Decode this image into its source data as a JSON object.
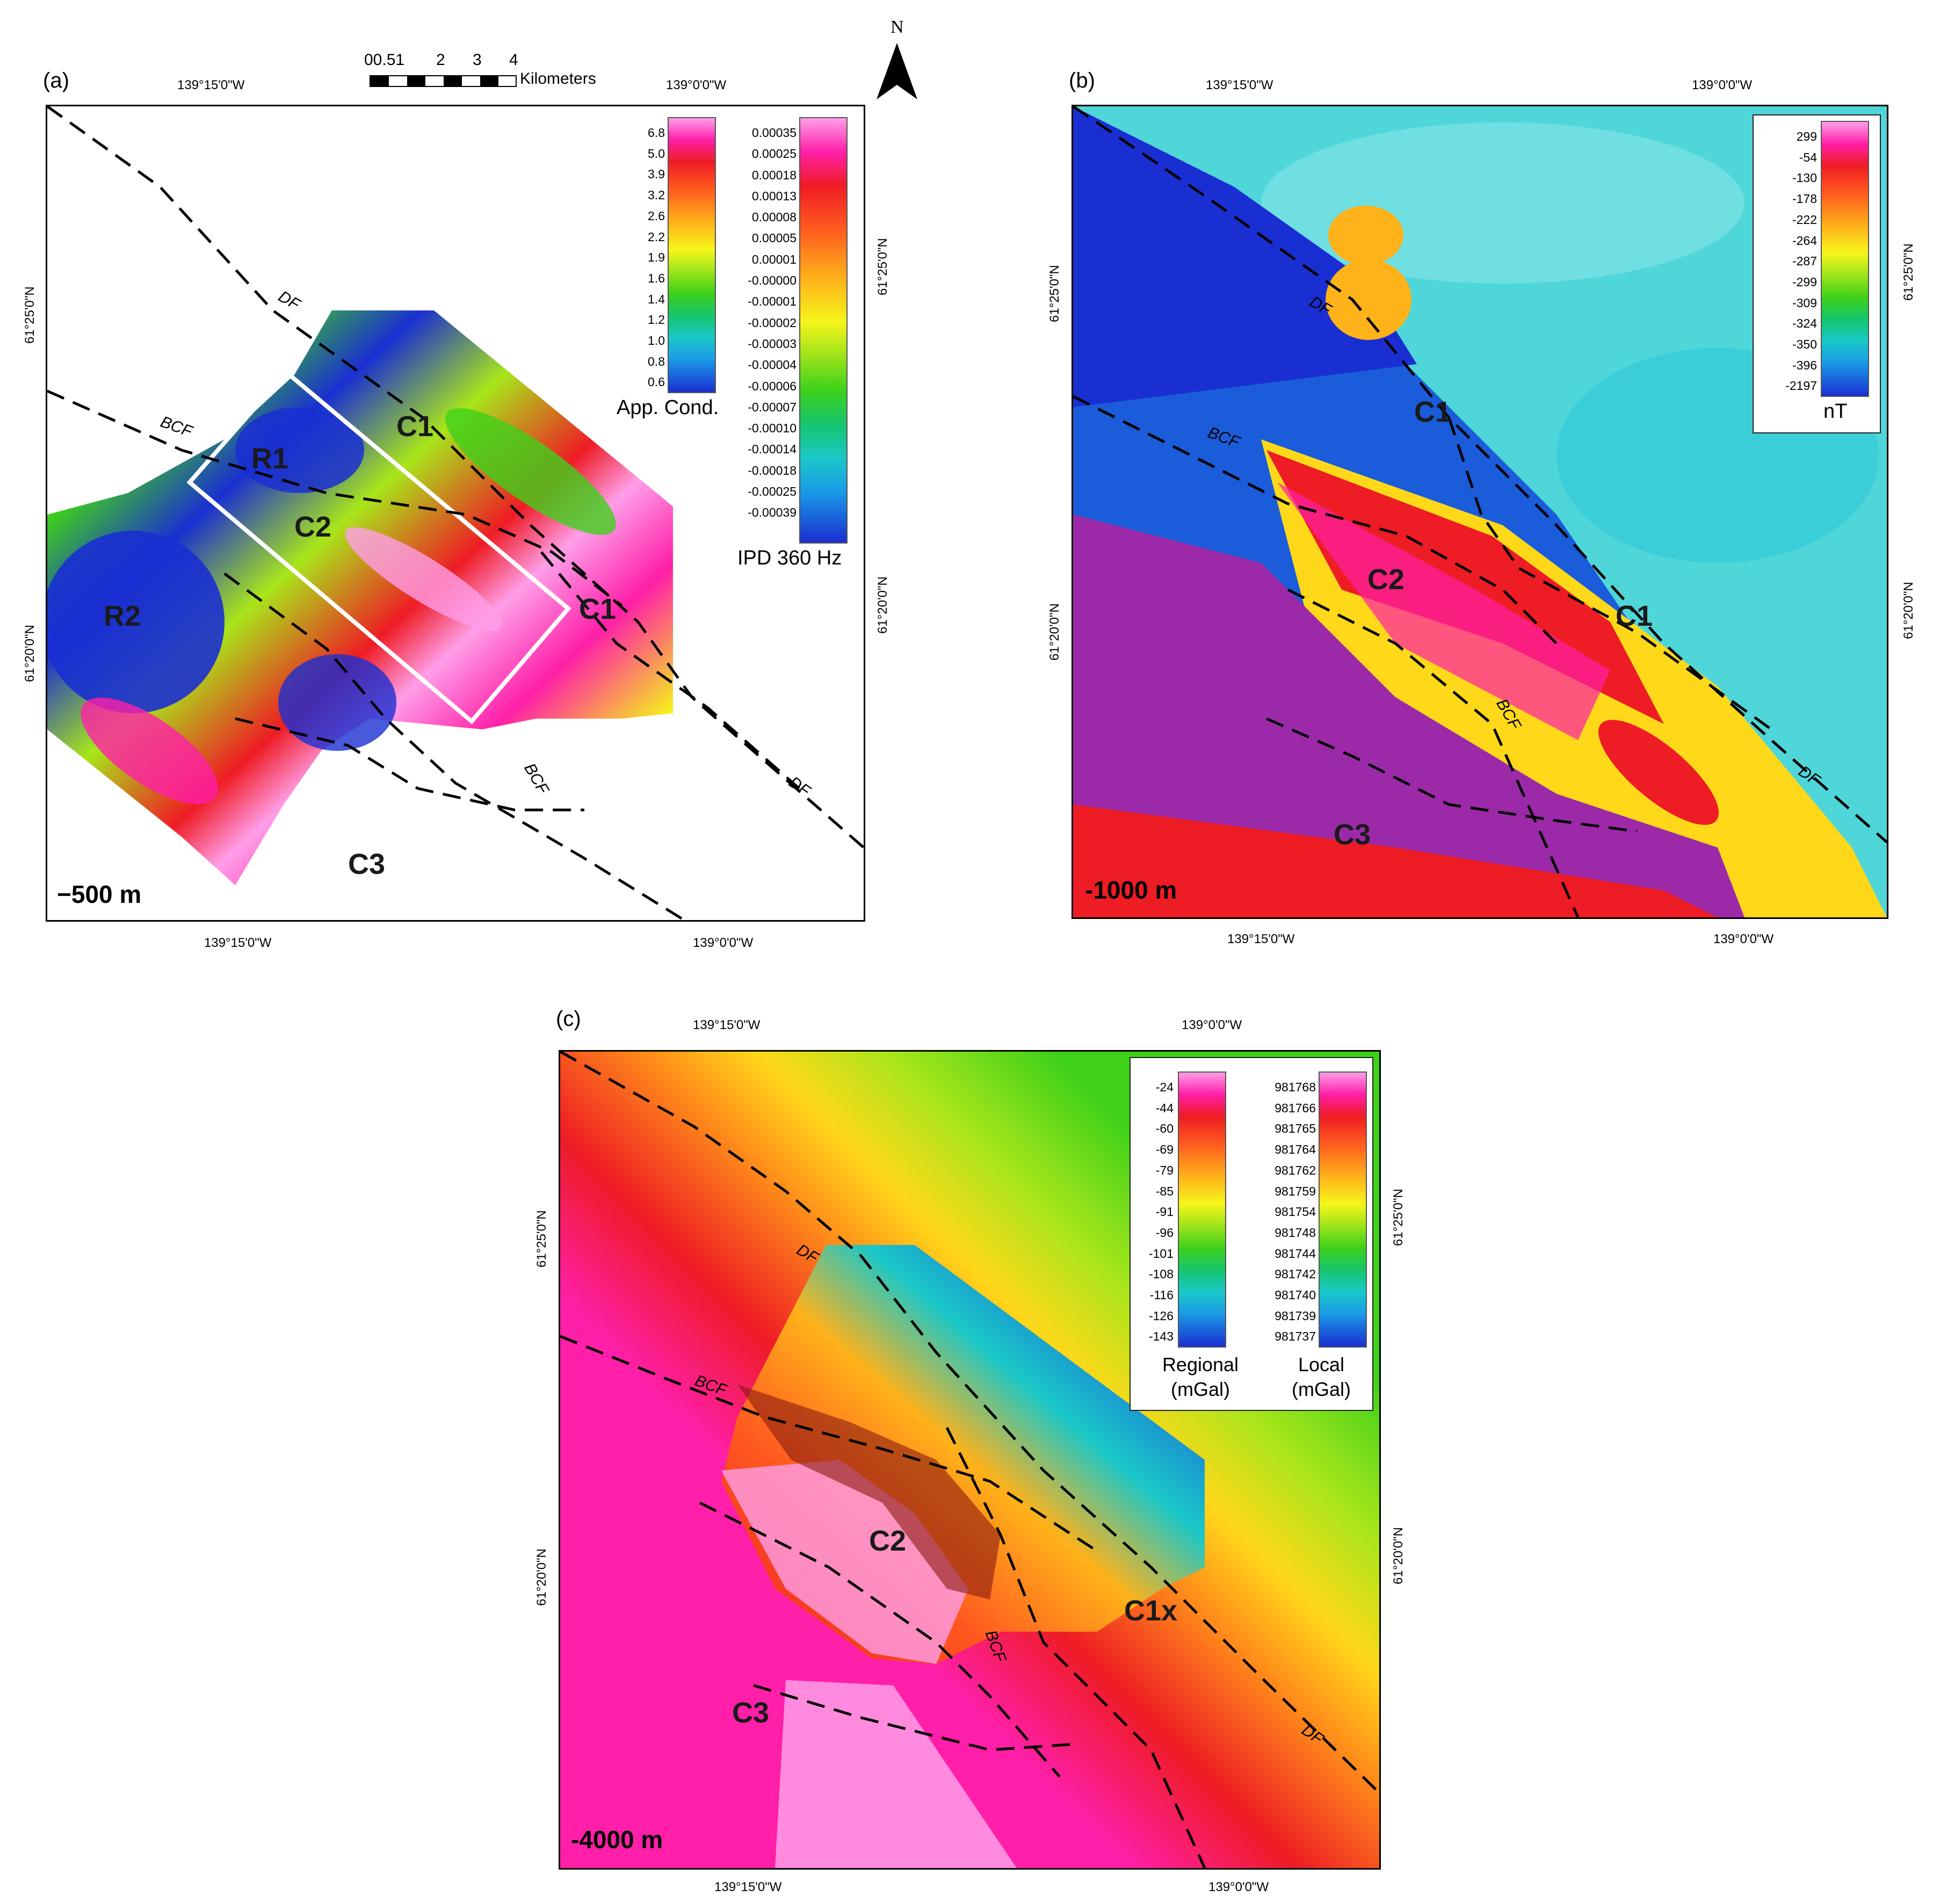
{
  "panels": {
    "a": {
      "letter": "(a)",
      "depth": "−500 m",
      "lon_labels": [
        "139°15'0\"W",
        "139°0'0\"W"
      ],
      "lat_labels": [
        "61°25'0\"N",
        "61°20'0\"N"
      ],
      "feature_labels": [
        "C1",
        "C1",
        "R1",
        "C2",
        "R2",
        "C3"
      ],
      "fault_labels": [
        "DF",
        "BCF",
        "BCF",
        "DF"
      ],
      "legend_left": {
        "title": "App. Cond.",
        "values": [
          "6.8",
          "5.0",
          "3.9",
          "3.2",
          "2.6",
          "2.2",
          "1.9",
          "1.6",
          "1.4",
          "1.2",
          "1.0",
          "0.8",
          "0.6"
        ]
      },
      "legend_right": {
        "title": "IPD 360 Hz",
        "values": [
          "0.00035",
          "0.00025",
          "0.00018",
          "0.00013",
          "0.00008",
          "0.00005",
          "0.00001",
          "-0.00000",
          "-0.00001",
          "-0.00002",
          "-0.00003",
          "-0.00004",
          "-0.00006",
          "-0.00007",
          "-0.00010",
          "-0.00014",
          "-0.00018",
          "-0.00025",
          "-0.00039"
        ]
      }
    },
    "b": {
      "letter": "(b)",
      "depth": "-1000 m",
      "lon_labels": [
        "139°15'0\"W",
        "139°0'0\"W"
      ],
      "lat_labels": [
        "61°25'0\"N",
        "61°20'0\"N"
      ],
      "feature_labels": [
        "C1",
        "C1",
        "C2",
        "C3"
      ],
      "fault_labels": [
        "DF",
        "BCF",
        "BCF",
        "DF"
      ],
      "legend": {
        "title": "nT",
        "values": [
          "299",
          "-54",
          "-130",
          "-178",
          "-222",
          "-264",
          "-287",
          "-299",
          "-309",
          "-324",
          "-350",
          "-396",
          "-2197"
        ]
      }
    },
    "c": {
      "letter": "(c)",
      "depth": "-4000 m",
      "lon_labels": [
        "139°15'0\"W",
        "139°0'0\"W"
      ],
      "lat_labels": [
        "61°25'0\"N",
        "61°20'0\"N"
      ],
      "feature_labels": [
        "C2",
        "C1x",
        "C3"
      ],
      "fault_labels": [
        "DF",
        "BCF",
        "BCF",
        "DF"
      ],
      "legend_left": {
        "title": "Regional\n(mGal)",
        "values": [
          "-24",
          "-44",
          "-60",
          "-69",
          "-79",
          "-85",
          "-91",
          "-96",
          "-101",
          "-108",
          "-116",
          "-126",
          "-143"
        ]
      },
      "legend_right": {
        "title": "Local\n(mGal)",
        "values": [
          "981768",
          "981766",
          "981765",
          "981764",
          "981762",
          "981759",
          "981754",
          "981748",
          "981744",
          "981742",
          "981740",
          "981739",
          "981737"
        ]
      }
    }
  },
  "scale_bar": {
    "ticks": [
      "00.51",
      "2",
      "3",
      "4"
    ],
    "unit": "Kilometers"
  },
  "north_arrow": {
    "label": "N"
  },
  "colors": {
    "ramp": [
      "#ff9ee8",
      "#ff1fa8",
      "#ee1c24",
      "#ff5a1f",
      "#ff8c1a",
      "#ffb21a",
      "#ffd81a",
      "#f5f51a",
      "#a8e61a",
      "#3fd11a",
      "#16c56b",
      "#1ac8c8",
      "#1a9be6",
      "#1a5cd9",
      "#1a2fd1"
    ]
  }
}
